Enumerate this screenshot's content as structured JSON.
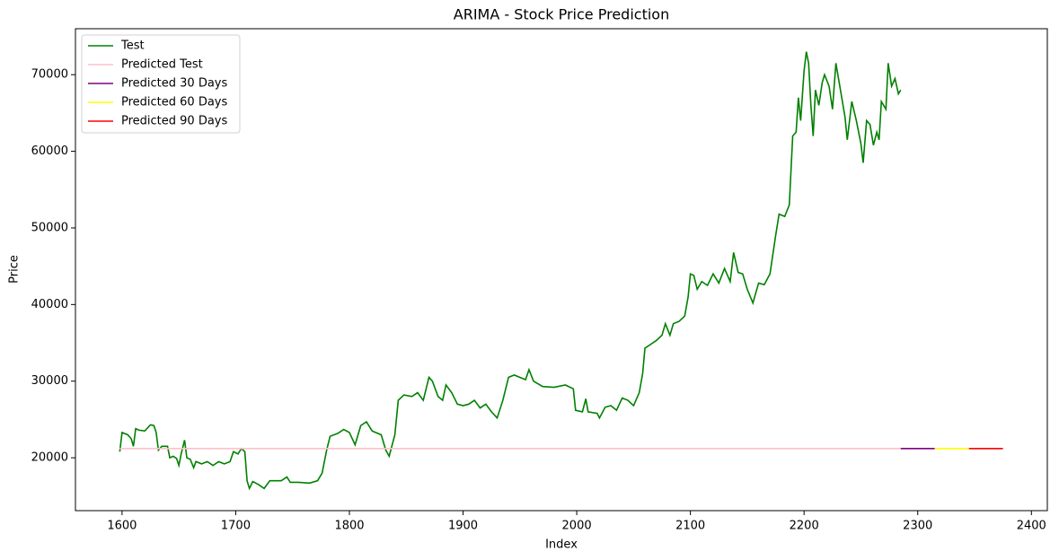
{
  "chart_data": {
    "type": "line",
    "title": "ARIMA - Stock Price Prediction",
    "x_label": "Index",
    "y_label": "Price",
    "xlim": [
      1559,
      2414
    ],
    "ylim": [
      13100,
      76000
    ],
    "xticks": [
      1600,
      1700,
      1800,
      1900,
      2000,
      2100,
      2200,
      2300,
      2400
    ],
    "yticks": [
      20000,
      30000,
      40000,
      50000,
      60000,
      70000
    ],
    "legend": "upper left",
    "series": [
      {
        "name": "Test",
        "color": "#008000",
        "x": [
          1598,
          1600,
          1605,
          1608,
          1610,
          1612,
          1615,
          1620,
          1625,
          1628,
          1630,
          1632,
          1635,
          1640,
          1642,
          1645,
          1648,
          1650,
          1652,
          1655,
          1657,
          1660,
          1663,
          1665,
          1670,
          1675,
          1680,
          1685,
          1690,
          1695,
          1698,
          1702,
          1705,
          1708,
          1710,
          1712,
          1715,
          1720,
          1725,
          1730,
          1740,
          1745,
          1748,
          1755,
          1765,
          1772,
          1776,
          1780,
          1783,
          1790,
          1795,
          1800,
          1805,
          1810,
          1815,
          1820,
          1828,
          1832,
          1835,
          1840,
          1843,
          1848,
          1855,
          1860,
          1865,
          1870,
          1873,
          1878,
          1882,
          1885,
          1890,
          1895,
          1900,
          1905,
          1910,
          1915,
          1920,
          1925,
          1930,
          1935,
          1940,
          1945,
          1950,
          1955,
          1958,
          1962,
          1970,
          1980,
          1990,
          1997,
          1999,
          2005,
          2008,
          2010,
          2018,
          2020,
          2025,
          2030,
          2035,
          2040,
          2045,
          2050,
          2055,
          2058,
          2060,
          2065,
          2070,
          2075,
          2078,
          2082,
          2085,
          2090,
          2095,
          2098,
          2100,
          2103,
          2106,
          2110,
          2115,
          2120,
          2125,
          2130,
          2135,
          2138,
          2142,
          2146,
          2150,
          2155,
          2160,
          2165,
          2170,
          2175,
          2178,
          2183,
          2187,
          2190,
          2193,
          2195,
          2197,
          2200,
          2202,
          2204,
          2206,
          2208,
          2210,
          2213,
          2216,
          2218,
          2222,
          2225,
          2228,
          2232,
          2236,
          2238,
          2242,
          2246,
          2250,
          2252,
          2255,
          2258,
          2261,
          2264,
          2266,
          2268,
          2272,
          2274,
          2277,
          2280,
          2283,
          2285
        ],
        "values": [
          20800,
          23300,
          23000,
          22500,
          21500,
          23800,
          23600,
          23500,
          24300,
          24200,
          23300,
          21000,
          21500,
          21500,
          20000,
          20200,
          19900,
          19000,
          20500,
          22300,
          20000,
          19800,
          18700,
          19500,
          19200,
          19500,
          19000,
          19500,
          19200,
          19500,
          20800,
          20500,
          21200,
          20800,
          17000,
          16000,
          16900,
          16500,
          16000,
          17000,
          17000,
          17500,
          16800,
          16800,
          16700,
          17000,
          18000,
          21000,
          22800,
          23200,
          23700,
          23300,
          21700,
          24200,
          24700,
          23500,
          23000,
          21000,
          20200,
          23000,
          27500,
          28200,
          28000,
          28500,
          27500,
          30500,
          30000,
          28000,
          27500,
          29500,
          28500,
          27000,
          26800,
          27000,
          27500,
          26500,
          27000,
          26000,
          25200,
          27500,
          30500,
          30800,
          30500,
          30200,
          31500,
          30000,
          29300,
          29200,
          29500,
          29000,
          26200,
          26000,
          27700,
          26000,
          25800,
          25200,
          26600,
          26800,
          26200,
          27800,
          27500,
          26800,
          28500,
          31000,
          34300,
          34800,
          35300,
          36000,
          37500,
          36000,
          37500,
          37800,
          38500,
          41000,
          44000,
          43800,
          42000,
          43000,
          42500,
          44000,
          42800,
          44700,
          43000,
          46800,
          44200,
          44000,
          42000,
          40200,
          42800,
          42600,
          44000,
          49000,
          51800,
          51500,
          53000,
          62000,
          62500,
          67000,
          64000,
          70500,
          73000,
          71500,
          66000,
          62000,
          68000,
          66000,
          69000,
          70000,
          68500,
          65500,
          71500,
          68000,
          64500,
          61500,
          66500,
          64000,
          61000,
          58500,
          64000,
          63500,
          60800,
          62500,
          61500,
          66500,
          65500,
          71500,
          68500,
          69500,
          67500,
          68000
        ]
      },
      {
        "name": "Predicted Test",
        "color": "#ffc0cb",
        "x": [
          1598,
          2285
        ],
        "values": [
          21200,
          21200
        ]
      },
      {
        "name": "Predicted 30 Days",
        "color": "#800080",
        "x": [
          2285,
          2315
        ],
        "values": [
          21200,
          21200
        ]
      },
      {
        "name": "Predicted 60 Days",
        "color": "#ffff00",
        "x": [
          2315,
          2345
        ],
        "values": [
          21200,
          21200
        ]
      },
      {
        "name": "Predicted 90 Days",
        "color": "#ff0000",
        "x": [
          2345,
          2375
        ],
        "values": [
          21200,
          21200
        ]
      }
    ]
  }
}
